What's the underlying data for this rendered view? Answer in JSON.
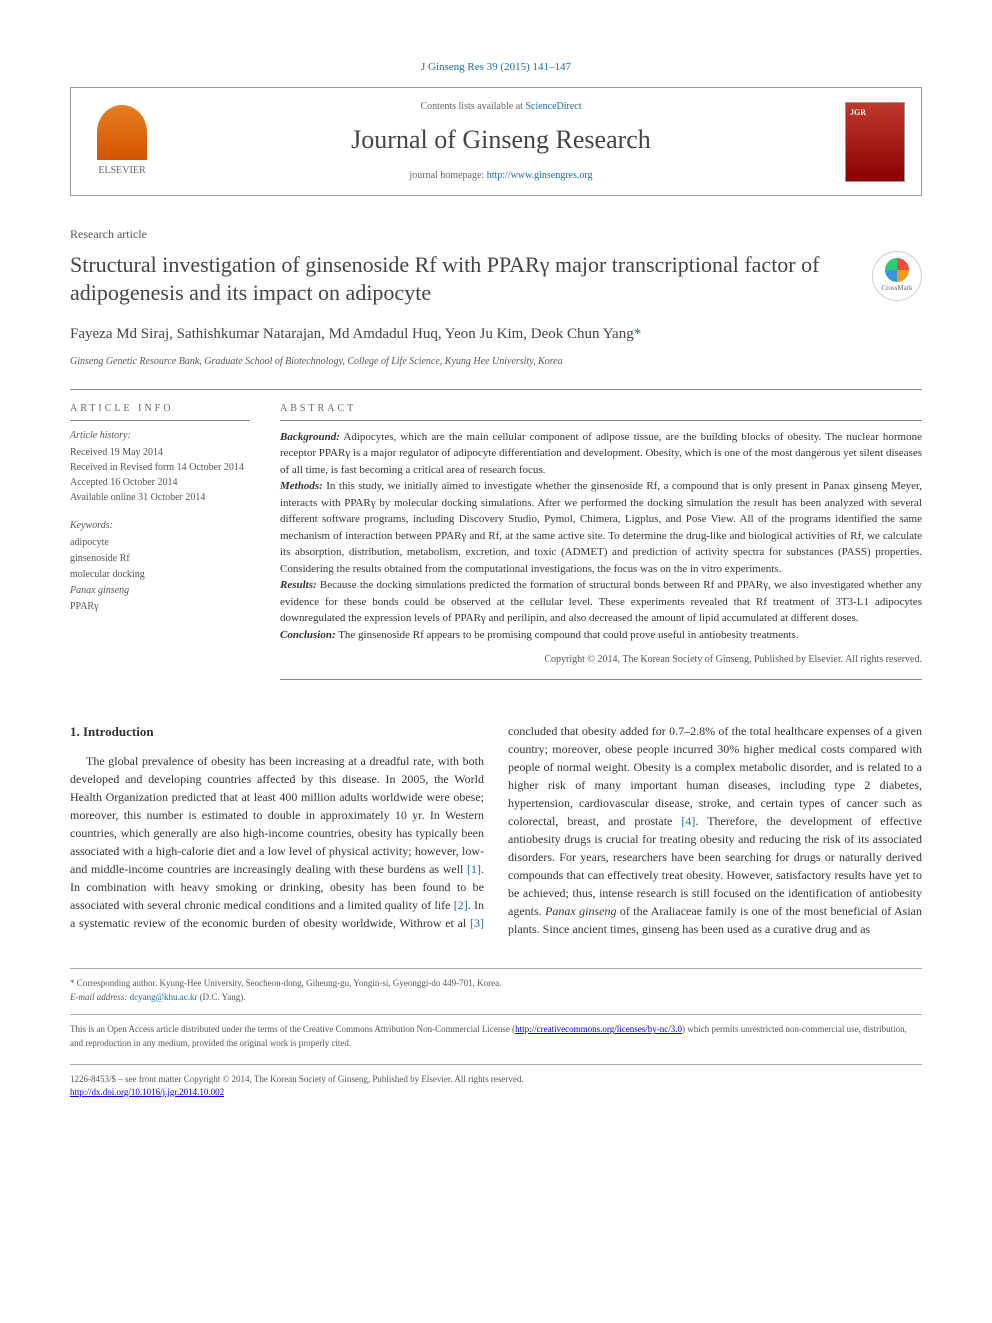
{
  "journal_ref": "J Ginseng Res 39 (2015) 141–147",
  "header": {
    "contents_prefix": "Contents lists available at ",
    "contents_link": "ScienceDirect",
    "journal_name": "Journal of Ginseng Research",
    "homepage_prefix": "journal homepage: ",
    "homepage_url": "http://www.ginsengres.org",
    "publisher": "ELSEVIER"
  },
  "article_type": "Research article",
  "title": "Structural investigation of ginsenoside Rf with PPARγ major transcriptional factor of adipogenesis and its impact on adipocyte",
  "crossmark_label": "CrossMark",
  "authors": "Fayeza Md Siraj, Sathishkumar Natarajan, Md Amdadul Huq, Yeon Ju Kim, Deok Chun Yang",
  "corr_mark": "*",
  "affiliation": "Ginseng Genetic Resource Bank, Graduate School of Biotechnology, College of Life Science, Kyung Hee University, Korea",
  "info": {
    "heading": "ARTICLE INFO",
    "history_label": "Article history:",
    "received": "Received 19 May 2014",
    "revised": "Received in Revised form 14 October 2014",
    "accepted": "Accepted 16 October 2014",
    "online": "Available online 31 October 2014",
    "keywords_label": "Keywords:",
    "keywords": [
      "adipocyte",
      "ginsenoside Rf",
      "molecular docking",
      "Panax ginseng",
      "PPARγ"
    ]
  },
  "abstract": {
    "heading": "ABSTRACT",
    "background_label": "Background:",
    "background": " Adipocytes, which are the main cellular component of adipose tissue, are the building blocks of obesity. The nuclear hormone receptor PPARγ is a major regulator of adipocyte differentiation and development. Obesity, which is one of the most dangerous yet silent diseases of all time, is fast becoming a critical area of research focus.",
    "methods_label": "Methods:",
    "methods": " In this study, we initially aimed to investigate whether the ginsenoside Rf, a compound that is only present in Panax ginseng Meyer, interacts with PPARγ by molecular docking simulations. After we performed the docking simulation the result has been analyzed with several different software programs, including Discovery Studio, Pymol, Chimera, Ligplus, and Pose View. All of the programs identified the same mechanism of interaction between PPARγ and Rf, at the same active site. To determine the drug-like and biological activities of Rf, we calculate its absorption, distribution, metabolism, excretion, and toxic (ADMET) and prediction of activity spectra for substances (PASS) properties. Considering the results obtained from the computational investigations, the focus was on the in vitro experiments.",
    "results_label": "Results:",
    "results": " Because the docking simulations predicted the formation of structural bonds between Rf and PPARγ, we also investigated whether any evidence for these bonds could be observed at the cellular level. These experiments revealed that Rf treatment of 3T3-L1 adipocytes downregulated the expression levels of PPARγ and perilipin, and also decreased the amount of lipid accumulated at different doses.",
    "conclusion_label": "Conclusion:",
    "conclusion": " The ginsenoside Rf appears to be promising compound that could prove useful in antiobesity treatments.",
    "copyright": "Copyright © 2014, The Korean Society of Ginseng, Published by Elsevier. All rights reserved."
  },
  "intro": {
    "heading": "1. Introduction",
    "text": "The global prevalence of obesity has been increasing at a dreadful rate, with both developed and developing countries affected by this disease. In 2005, the World Health Organization predicted that at least 400 million adults worldwide were obese; moreover, this number is estimated to double in approximately 10 yr. In Western countries, which generally are also high-income countries, obesity has typically been associated with a high-calorie diet and a low level of physical activity; however, low- and middle-income countries are increasingly dealing with these burdens as well [1]. In combination with heavy smoking or drinking, obesity has been found to be associated with several chronic medical conditions and a limited quality of life [2]. In a systematic review of the economic burden of obesity worldwide, Withrow et al [3] concluded that obesity added for 0.7–2.8% of the total healthcare expenses of a given country; moreover, obese people incurred 30% higher medical costs compared with people of normal weight. Obesity is a complex metabolic disorder, and is related to a higher risk of many important human diseases, including type 2 diabetes, hypertension, cardiovascular disease, stroke, and certain types of cancer such as colorectal, breast, and prostate [4]. Therefore, the development of effective antiobesity drugs is crucial for treating obesity and reducing the risk of its associated disorders. For years, researchers have been searching for drugs or naturally derived compounds that can effectively treat obesity. However, satisfactory results have yet to be achieved; thus, intense research is still focused on the identification of antiobesity agents. Panax ginseng of the Araliaceae family is one of the most beneficial of Asian plants. Since ancient times, ginseng has been used as a curative drug and as"
  },
  "footer": {
    "corr_label": "* Corresponding author. ",
    "corr_text": "Kyung-Hee University, Seocheon-dong, Giheung-gu, Yongin-si, Gyeonggi-do 449-701, Korea.",
    "email_label": "E-mail address: ",
    "email": "dcyang@khu.ac.kr",
    "email_suffix": " (D.C. Yang).",
    "license": "This is an Open Access article distributed under the terms of the Creative Commons Attribution Non-Commercial License (http://creativecommons.org/licenses/by-nc/3.0) which permits unrestricted non-commercial use, distribution, and reproduction in any medium, provided the original work is properly cited.",
    "license_url": "http://creativecommons.org/licenses/by-nc/3.0",
    "issn": "1226-8453/$ – see front matter Copyright © 2014, The Korean Society of Ginseng, Published by Elsevier. All rights reserved.",
    "doi": "http://dx.doi.org/10.1016/j.jgr.2014.10.002"
  },
  "refs": {
    "r1": "[1]",
    "r2": "[2]",
    "r3": "[3]",
    "r4": "[4]"
  }
}
